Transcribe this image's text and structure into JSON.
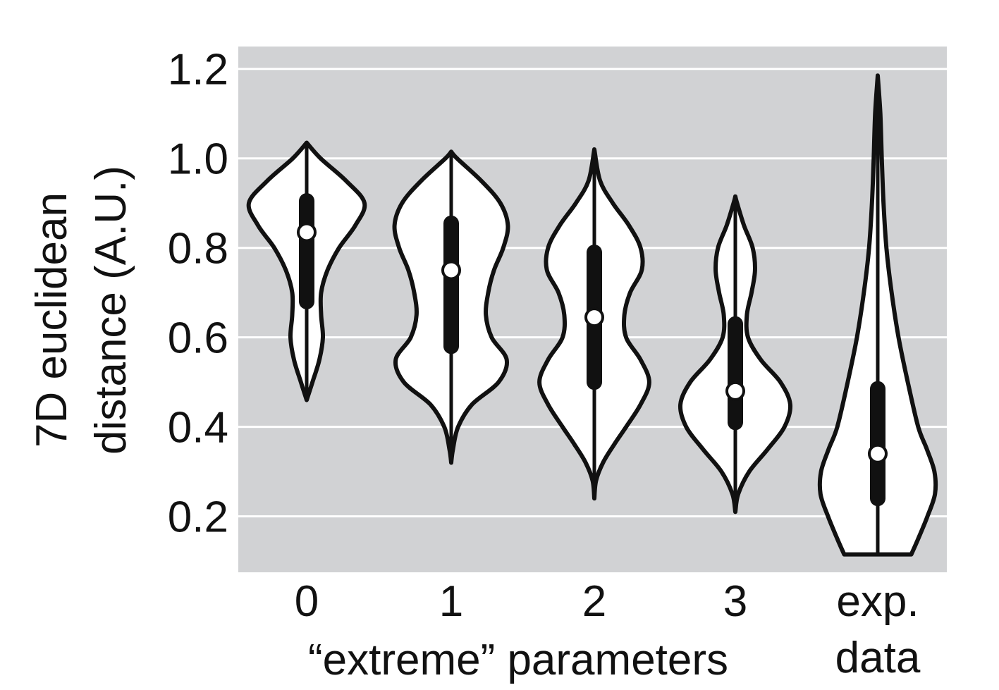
{
  "chart_data": {
    "type": "violin",
    "title": "",
    "xlabel": "“extreme” parameters",
    "ylabel_lines": [
      "7D euclidean",
      "distance (A.U.)"
    ],
    "ylim": [
      0.075,
      1.25
    ],
    "yticks": [
      0.2,
      0.4,
      0.6,
      0.8,
      1.0,
      1.2
    ],
    "ytick_labels": [
      "0.2",
      "0.4",
      "0.6",
      "0.8",
      "1.0",
      "1.2"
    ],
    "grid": true,
    "background_color": "#d1d2d4",
    "gridline_color": "#ffffff",
    "violin_fill": "#ffffff",
    "outline_color": "#111111",
    "median_marker_color": "#ffffff",
    "groups": [
      {
        "label_lines": [
          "0"
        ],
        "min": 0.46,
        "max": 1.035,
        "q1": 0.68,
        "median": 0.835,
        "q3": 0.905,
        "profile": [
          [
            0.46,
            0
          ],
          [
            0.5,
            0.1
          ],
          [
            0.55,
            0.22
          ],
          [
            0.6,
            0.28
          ],
          [
            0.65,
            0.25
          ],
          [
            0.7,
            0.25
          ],
          [
            0.75,
            0.36
          ],
          [
            0.8,
            0.56
          ],
          [
            0.85,
            0.84
          ],
          [
            0.9,
            1.0
          ],
          [
            0.95,
            0.68
          ],
          [
            1.0,
            0.24
          ],
          [
            1.035,
            0
          ]
        ]
      },
      {
        "label_lines": [
          "1"
        ],
        "min": 0.32,
        "max": 1.015,
        "q1": 0.58,
        "median": 0.75,
        "q3": 0.855,
        "profile": [
          [
            0.32,
            0
          ],
          [
            0.35,
            0.03
          ],
          [
            0.4,
            0.12
          ],
          [
            0.45,
            0.36
          ],
          [
            0.5,
            0.82
          ],
          [
            0.55,
            0.96
          ],
          [
            0.6,
            0.7
          ],
          [
            0.65,
            0.6
          ],
          [
            0.7,
            0.64
          ],
          [
            0.75,
            0.74
          ],
          [
            0.8,
            0.9
          ],
          [
            0.85,
            0.98
          ],
          [
            0.9,
            0.85
          ],
          [
            0.95,
            0.52
          ],
          [
            1.0,
            0.1
          ],
          [
            1.015,
            0
          ]
        ]
      },
      {
        "label_lines": [
          "2"
        ],
        "min": 0.24,
        "max": 1.02,
        "q1": 0.5,
        "median": 0.645,
        "q3": 0.79,
        "profile": [
          [
            0.24,
            0
          ],
          [
            0.28,
            0.03
          ],
          [
            0.32,
            0.15
          ],
          [
            0.36,
            0.34
          ],
          [
            0.4,
            0.55
          ],
          [
            0.45,
            0.8
          ],
          [
            0.5,
            0.95
          ],
          [
            0.55,
            0.8
          ],
          [
            0.6,
            0.55
          ],
          [
            0.65,
            0.52
          ],
          [
            0.7,
            0.62
          ],
          [
            0.75,
            0.82
          ],
          [
            0.8,
            0.8
          ],
          [
            0.85,
            0.6
          ],
          [
            0.9,
            0.32
          ],
          [
            0.95,
            0.1
          ],
          [
            1.02,
            0
          ]
        ]
      },
      {
        "label_lines": [
          "3"
        ],
        "min": 0.21,
        "max": 0.915,
        "q1": 0.41,
        "median": 0.48,
        "q3": 0.63,
        "profile": [
          [
            0.21,
            0
          ],
          [
            0.25,
            0.05
          ],
          [
            0.3,
            0.24
          ],
          [
            0.35,
            0.56
          ],
          [
            0.4,
            0.85
          ],
          [
            0.45,
            0.95
          ],
          [
            0.5,
            0.78
          ],
          [
            0.55,
            0.44
          ],
          [
            0.6,
            0.22
          ],
          [
            0.65,
            0.2
          ],
          [
            0.7,
            0.28
          ],
          [
            0.75,
            0.34
          ],
          [
            0.8,
            0.3
          ],
          [
            0.85,
            0.15
          ],
          [
            0.9,
            0.03
          ],
          [
            0.915,
            0
          ]
        ]
      },
      {
        "label_lines": [
          "exp.",
          "data"
        ],
        "min": 0.115,
        "max": 1.185,
        "q1": 0.24,
        "median": 0.34,
        "q3": 0.485,
        "flat_bottom": true,
        "profile": [
          [
            0.115,
            0.58
          ],
          [
            0.15,
            0.7
          ],
          [
            0.2,
            0.86
          ],
          [
            0.25,
            0.99
          ],
          [
            0.3,
            0.98
          ],
          [
            0.35,
            0.85
          ],
          [
            0.4,
            0.7
          ],
          [
            0.5,
            0.52
          ],
          [
            0.6,
            0.36
          ],
          [
            0.7,
            0.24
          ],
          [
            0.8,
            0.15
          ],
          [
            0.9,
            0.1
          ],
          [
            1.0,
            0.07
          ],
          [
            1.1,
            0.045
          ],
          [
            1.185,
            0
          ]
        ]
      }
    ]
  }
}
